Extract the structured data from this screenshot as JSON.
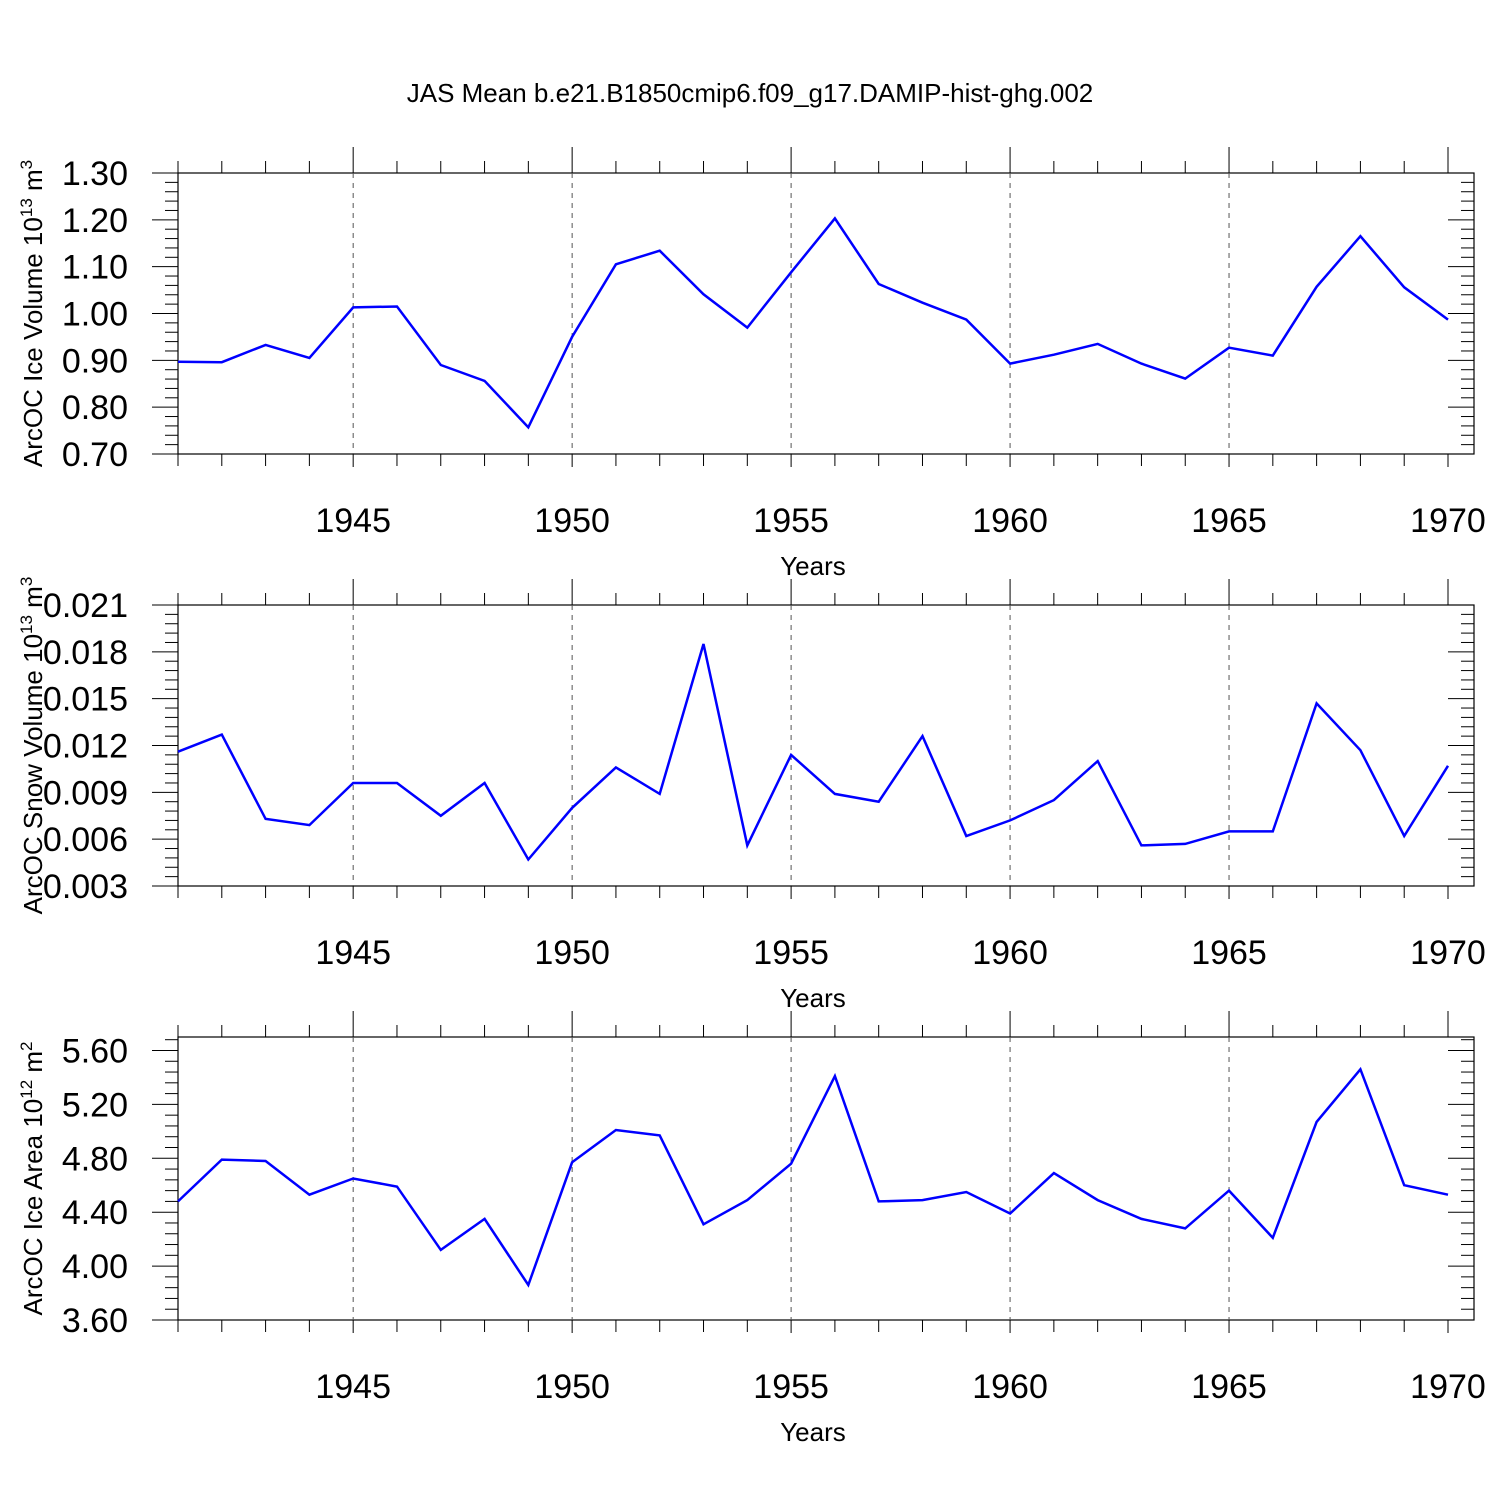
{
  "title": "JAS Mean b.e21.B1850cmip6.f09_g17.DAMIP-hist-ghg.002",
  "colors": {
    "series": "#0000ff",
    "axis": "#000000",
    "grid": "#555555"
  },
  "chart_data": [
    {
      "type": "line",
      "ylabel": {
        "text": "ArcOC Ice Volume 10",
        "exp": "13",
        "unit": " m",
        "unit_exp": "3"
      },
      "xlabel": "Years",
      "xlim": [
        1941,
        1970
      ],
      "ylim": [
        0.7,
        1.3
      ],
      "x_ticks": [
        "1945",
        "1950",
        "1955",
        "1960",
        "1965",
        "1970"
      ],
      "y_ticks": [
        "0.70",
        "0.80",
        "0.90",
        "1.00",
        "1.10",
        "1.20",
        "1.30"
      ],
      "grid": "vertical dashed at major x ticks",
      "x": [
        1941,
        1942,
        1943,
        1944,
        1945,
        1946,
        1947,
        1948,
        1949,
        1950,
        1951,
        1952,
        1953,
        1954,
        1955,
        1956,
        1957,
        1958,
        1959,
        1960,
        1961,
        1962,
        1963,
        1964,
        1965,
        1966,
        1967,
        1968,
        1969,
        1970
      ],
      "values": [
        0.897,
        0.896,
        0.933,
        0.905,
        1.013,
        1.015,
        0.89,
        0.856,
        0.757,
        0.95,
        1.105,
        1.134,
        1.041,
        0.97,
        1.088,
        1.203,
        1.063,
        1.023,
        0.987,
        0.893,
        0.912,
        0.935,
        0.893,
        0.861,
        0.927,
        0.91,
        1.057,
        1.165,
        1.056,
        0.987
      ]
    },
    {
      "type": "line",
      "ylabel": {
        "text": "ArcOC Snow Volume 10",
        "exp": "13",
        "unit": " m",
        "unit_exp": "3"
      },
      "xlabel": "Years",
      "xlim": [
        1941,
        1970
      ],
      "ylim": [
        0.003,
        0.021
      ],
      "x_ticks": [
        "1945",
        "1950",
        "1955",
        "1960",
        "1965",
        "1970"
      ],
      "y_ticks": [
        "0.003",
        "0.006",
        "0.009",
        "0.012",
        "0.015",
        "0.018",
        "0.021"
      ],
      "grid": "vertical dashed at major x ticks",
      "x": [
        1941,
        1942,
        1943,
        1944,
        1945,
        1946,
        1947,
        1948,
        1949,
        1950,
        1951,
        1952,
        1953,
        1954,
        1955,
        1956,
        1957,
        1958,
        1959,
        1960,
        1961,
        1962,
        1963,
        1964,
        1965,
        1966,
        1967,
        1968,
        1969,
        1970
      ],
      "values": [
        0.0116,
        0.0127,
        0.0073,
        0.0069,
        0.0096,
        0.0096,
        0.0075,
        0.0096,
        0.0047,
        0.008,
        0.0106,
        0.0089,
        0.0185,
        0.0056,
        0.0114,
        0.0089,
        0.0084,
        0.0126,
        0.0062,
        0.0072,
        0.0085,
        0.011,
        0.0056,
        0.0057,
        0.0065,
        0.0065,
        0.0147,
        0.0117,
        0.0062,
        0.0107
      ]
    },
    {
      "type": "line",
      "ylabel": {
        "text": "ArcOC Ice Area 10",
        "exp": "12",
        "unit": " m",
        "unit_exp": "2"
      },
      "xlabel": "Years",
      "xlim": [
        1941,
        1970
      ],
      "ylim": [
        3.6,
        5.7
      ],
      "x_ticks": [
        "1945",
        "1950",
        "1955",
        "1960",
        "1965",
        "1970"
      ],
      "y_ticks": [
        "3.60",
        "4.00",
        "4.40",
        "4.80",
        "5.20",
        "5.60"
      ],
      "grid": "vertical dashed at major x ticks",
      "x": [
        1941,
        1942,
        1943,
        1944,
        1945,
        1946,
        1947,
        1948,
        1949,
        1950,
        1951,
        1952,
        1953,
        1954,
        1955,
        1956,
        1957,
        1958,
        1959,
        1960,
        1961,
        1962,
        1963,
        1964,
        1965,
        1966,
        1967,
        1968,
        1969,
        1970
      ],
      "values": [
        4.48,
        4.79,
        4.78,
        4.53,
        4.65,
        4.59,
        4.12,
        4.35,
        3.86,
        4.77,
        5.01,
        4.97,
        4.31,
        4.49,
        4.76,
        5.41,
        4.48,
        4.49,
        4.55,
        4.39,
        4.69,
        4.49,
        4.35,
        4.28,
        4.56,
        4.21,
        5.07,
        5.46,
        4.6,
        4.53
      ]
    }
  ]
}
